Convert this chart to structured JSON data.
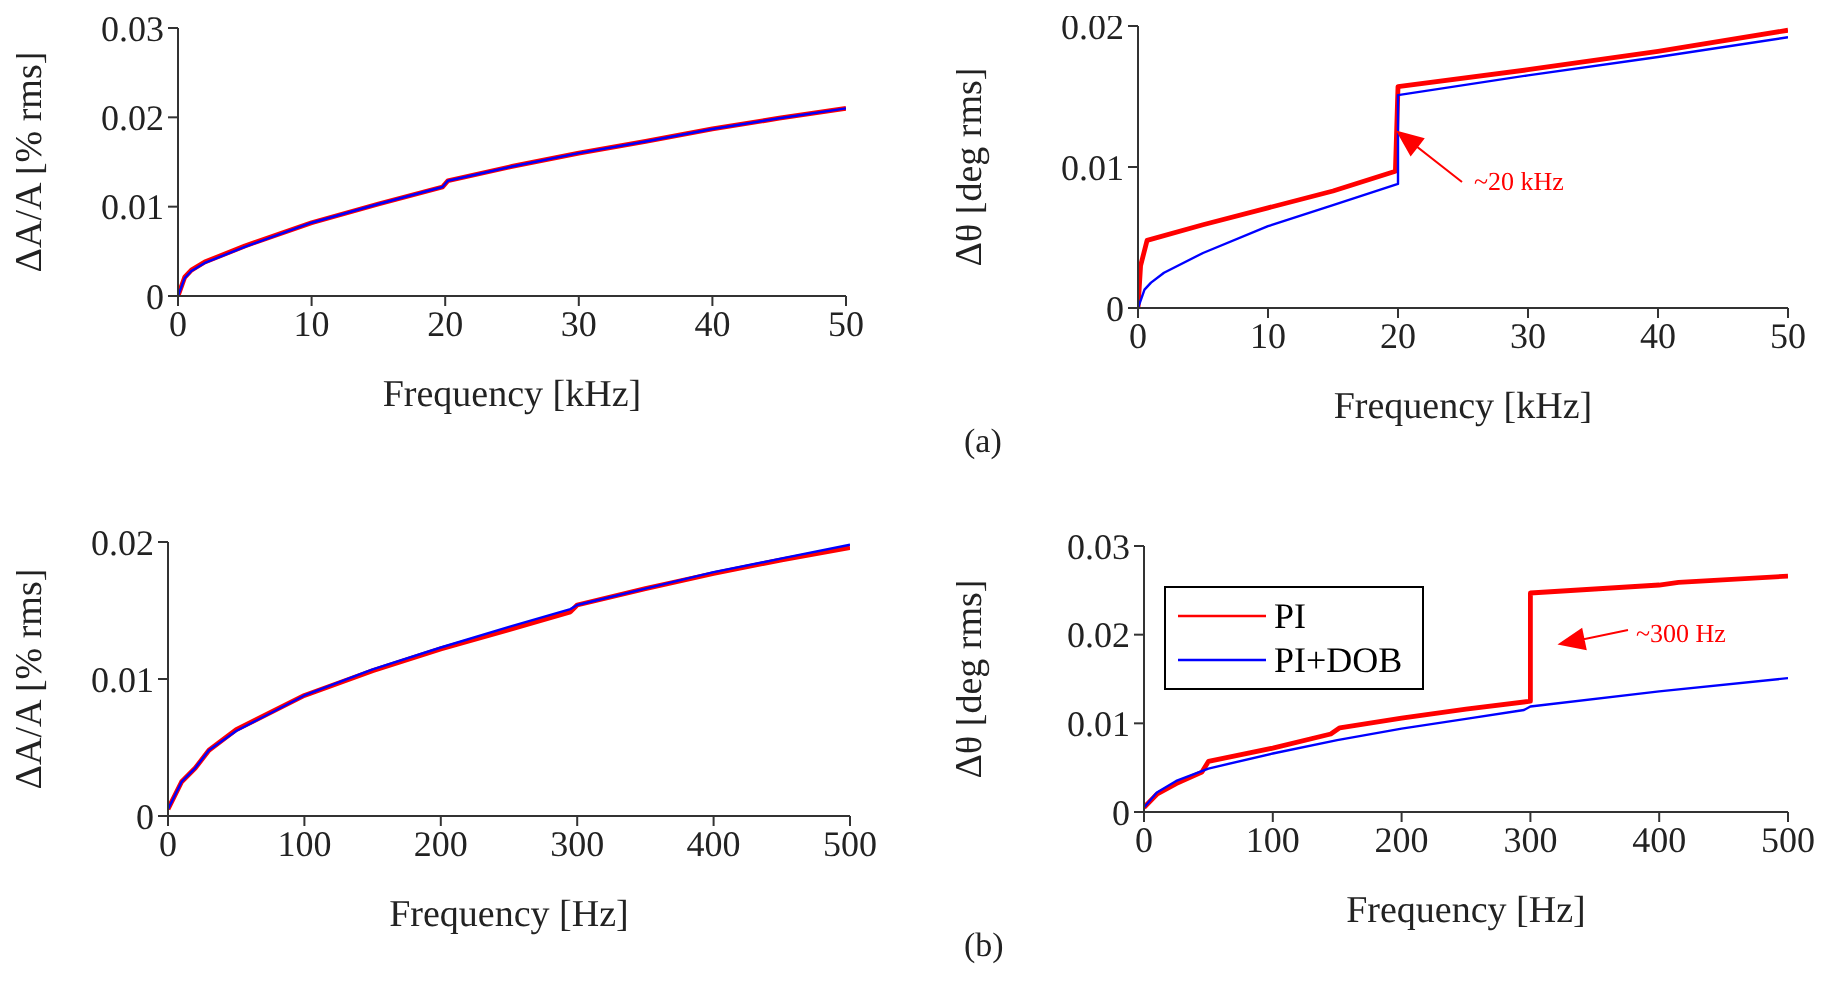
{
  "chart_data": [
    {
      "type": "line",
      "xlabel": "Frequency [kHz]",
      "ylabel": "ΔA/A [% rms]",
      "xlim": [
        0,
        50
      ],
      "xticks": [
        0,
        10,
        20,
        30,
        40,
        50
      ],
      "ylim": [
        0,
        0.03
      ],
      "yticks": [
        0,
        0.01,
        0.02,
        0.03
      ],
      "grid": false,
      "legend": false,
      "series": [
        {
          "color": "#ff0000",
          "x": [
            0,
            0.5,
            1,
            2,
            5,
            10,
            15,
            19.8,
            20.2,
            25,
            30,
            35,
            40,
            45,
            50
          ],
          "values": [
            0,
            0.0021,
            0.0029,
            0.0038,
            0.0056,
            0.0082,
            0.0103,
            0.0122,
            0.0129,
            0.0145,
            0.016,
            0.0173,
            0.0187,
            0.0199,
            0.021
          ]
        },
        {
          "color": "#0000ff",
          "x": [
            0,
            0.5,
            1,
            2,
            5,
            10,
            15,
            19.8,
            20.2,
            25,
            30,
            35,
            40,
            45,
            50
          ],
          "values": [
            0,
            0.002,
            0.0028,
            0.0037,
            0.0055,
            0.0082,
            0.0103,
            0.0122,
            0.0129,
            0.0145,
            0.016,
            0.0173,
            0.0187,
            0.0199,
            0.021
          ]
        }
      ]
    },
    {
      "type": "line",
      "xlabel": "Frequency [kHz]",
      "ylabel": "Δθ [deg rms]",
      "xlim": [
        0,
        50
      ],
      "xticks": [
        0,
        10,
        20,
        30,
        40,
        50
      ],
      "ylim": [
        0,
        0.02
      ],
      "yticks": [
        0,
        0.01,
        0.02
      ],
      "grid": false,
      "legend": false,
      "annotations": [
        "~20 kHz",
        "(a)"
      ],
      "series": [
        {
          "color": "#ff0000",
          "x": [
            0,
            0.2,
            0.7,
            5,
            10,
            15,
            19.8,
            20,
            30,
            40,
            50
          ],
          "values": [
            0,
            0.003,
            0.0048,
            0.0059,
            0.0071,
            0.0083,
            0.0097,
            0.0157,
            0.0169,
            0.0182,
            0.0197
          ]
        },
        {
          "color": "#0000ff",
          "x": [
            0,
            0.5,
            1,
            2,
            5,
            10,
            15,
            20,
            20,
            30,
            40,
            50
          ],
          "values": [
            0,
            0.0013,
            0.0018,
            0.0025,
            0.0039,
            0.0058,
            0.0073,
            0.0088,
            0.0151,
            0.0165,
            0.0178,
            0.0192
          ]
        }
      ]
    },
    {
      "type": "line",
      "xlabel": "Frequency [Hz]",
      "ylabel": "ΔA/A [% rms]",
      "xlim": [
        0,
        500
      ],
      "xticks": [
        0,
        100,
        200,
        300,
        400,
        500
      ],
      "ylim": [
        0,
        0.02
      ],
      "yticks": [
        0,
        0.01,
        0.02
      ],
      "grid": false,
      "legend": false,
      "series": [
        {
          "color": "#ff0000",
          "x": [
            0,
            10,
            20,
            30,
            50,
            100,
            150,
            200,
            250,
            295,
            300,
            350,
            400,
            450,
            500
          ],
          "values": [
            0.0005,
            0.0025,
            0.0035,
            0.0048,
            0.0063,
            0.0088,
            0.0106,
            0.0122,
            0.0136,
            0.0149,
            0.0154,
            0.0166,
            0.0177,
            0.0187,
            0.0196
          ]
        },
        {
          "color": "#0000ff",
          "x": [
            0,
            10,
            20,
            30,
            50,
            100,
            150,
            200,
            250,
            295,
            300,
            350,
            400,
            450,
            500
          ],
          "values": [
            0.0005,
            0.0025,
            0.0035,
            0.0048,
            0.0062,
            0.0088,
            0.0107,
            0.0123,
            0.0138,
            0.0151,
            0.0154,
            0.0166,
            0.0178,
            0.0188,
            0.0198
          ]
        }
      ]
    },
    {
      "type": "line",
      "xlabel": "Frequency [Hz]",
      "ylabel": "Δθ [deg rms]",
      "xlim": [
        0,
        500
      ],
      "xticks": [
        0,
        100,
        200,
        300,
        400,
        500
      ],
      "ylim": [
        0,
        0.03
      ],
      "yticks": [
        0,
        0.01,
        0.02,
        0.03
      ],
      "grid": false,
      "legend": "top left",
      "annotations": [
        "~300 Hz",
        "(b)"
      ],
      "series": [
        {
          "name": "PI",
          "color": "#ff0000",
          "x": [
            0,
            10,
            25,
            45,
            50,
            100,
            145,
            152,
            200,
            250,
            300,
            300,
            400,
            415,
            500
          ],
          "values": [
            0.0005,
            0.002,
            0.0032,
            0.0045,
            0.0057,
            0.0072,
            0.0088,
            0.0095,
            0.0106,
            0.0116,
            0.0125,
            0.0247,
            0.0256,
            0.0259,
            0.0266
          ]
        },
        {
          "name": "PI+DOB",
          "color": "#0000ff",
          "x": [
            0,
            10,
            25,
            50,
            100,
            150,
            200,
            250,
            295,
            300,
            400,
            500
          ],
          "values": [
            0.0005,
            0.0022,
            0.0035,
            0.0049,
            0.0066,
            0.0081,
            0.0094,
            0.0105,
            0.0115,
            0.0119,
            0.0136,
            0.0151
          ]
        }
      ]
    }
  ]
}
